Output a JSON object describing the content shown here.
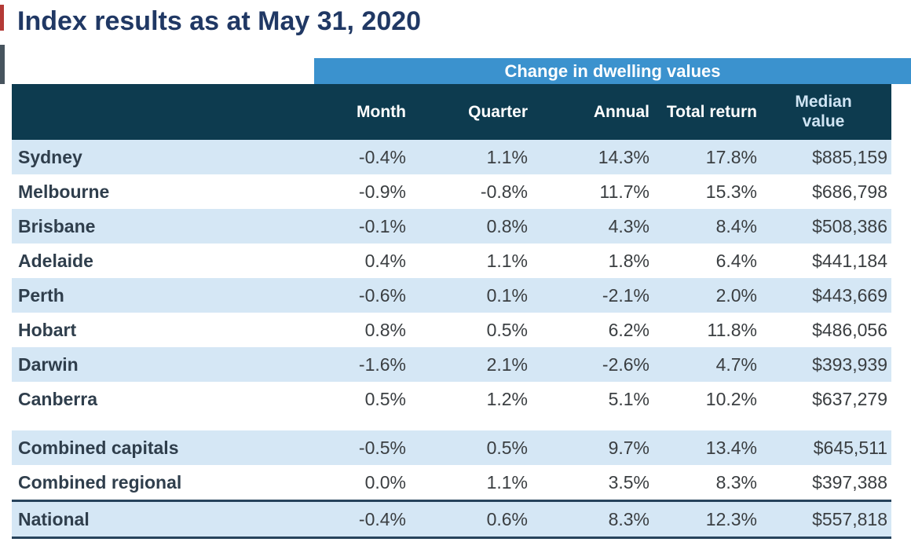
{
  "title": "Index results as at May 31, 2020",
  "colors": {
    "band_blue": "#3b92ce",
    "header_dark": "#0d3b4f",
    "row_blue": "#d5e7f5",
    "title_navy": "#203864",
    "rule_navy": "#27435c"
  },
  "chart_data": {
    "type": "table",
    "title": "Index results as at May 31, 2020",
    "group_header": "Change in dwelling values",
    "group_header_spans": [
      "Month",
      "Quarter",
      "Annual",
      "Total return"
    ],
    "columns": [
      "Month",
      "Quarter",
      "Annual",
      "Total return",
      "Median value"
    ],
    "rows": [
      {
        "name": "Sydney",
        "values": [
          "-0.4%",
          "1.1%",
          "14.3%",
          "17.8%",
          "$885,159"
        ]
      },
      {
        "name": "Melbourne",
        "values": [
          "-0.9%",
          "-0.8%",
          "11.7%",
          "15.3%",
          "$686,798"
        ]
      },
      {
        "name": "Brisbane",
        "values": [
          "-0.1%",
          "0.8%",
          "4.3%",
          "8.4%",
          "$508,386"
        ]
      },
      {
        "name": "Adelaide",
        "values": [
          "0.4%",
          "1.1%",
          "1.8%",
          "6.4%",
          "$441,184"
        ]
      },
      {
        "name": "Perth",
        "values": [
          "-0.6%",
          "0.1%",
          "-2.1%",
          "2.0%",
          "$443,669"
        ]
      },
      {
        "name": "Hobart",
        "values": [
          "0.8%",
          "0.5%",
          "6.2%",
          "11.8%",
          "$486,056"
        ]
      },
      {
        "name": "Darwin",
        "values": [
          "-1.6%",
          "2.1%",
          "-2.6%",
          "4.7%",
          "$393,939"
        ]
      },
      {
        "name": "Canberra",
        "values": [
          "0.5%",
          "1.2%",
          "5.1%",
          "10.2%",
          "$637,279"
        ]
      },
      {
        "name": "Combined capitals",
        "values": [
          "-0.5%",
          "0.5%",
          "9.7%",
          "13.4%",
          "$645,511"
        ]
      },
      {
        "name": "Combined regional",
        "values": [
          "0.0%",
          "1.1%",
          "3.5%",
          "8.3%",
          "$397,388"
        ]
      },
      {
        "name": "National",
        "values": [
          "-0.4%",
          "0.6%",
          "8.3%",
          "12.3%",
          "$557,818"
        ]
      }
    ]
  }
}
